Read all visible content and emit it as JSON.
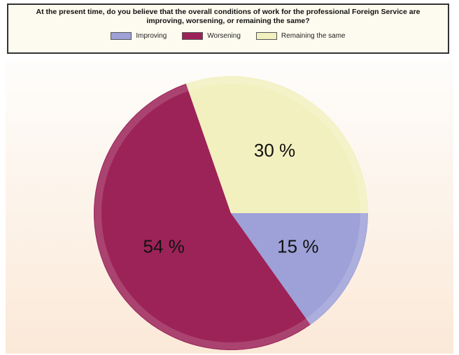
{
  "chart_data": {
    "type": "pie",
    "title": "At the present time, do you believe that the overall conditions of work for the professional Foreign Service are improving, worsening, or remaining the same?",
    "categories": [
      "Improving",
      "Worsening",
      "Remaining the same"
    ],
    "values": [
      15,
      54,
      30
    ],
    "value_labels": [
      "15 %",
      "54 %",
      "30 %"
    ],
    "colors": [
      "#9ea1d8",
      "#9c2358",
      "#f3f0bf"
    ],
    "legend": "top"
  }
}
